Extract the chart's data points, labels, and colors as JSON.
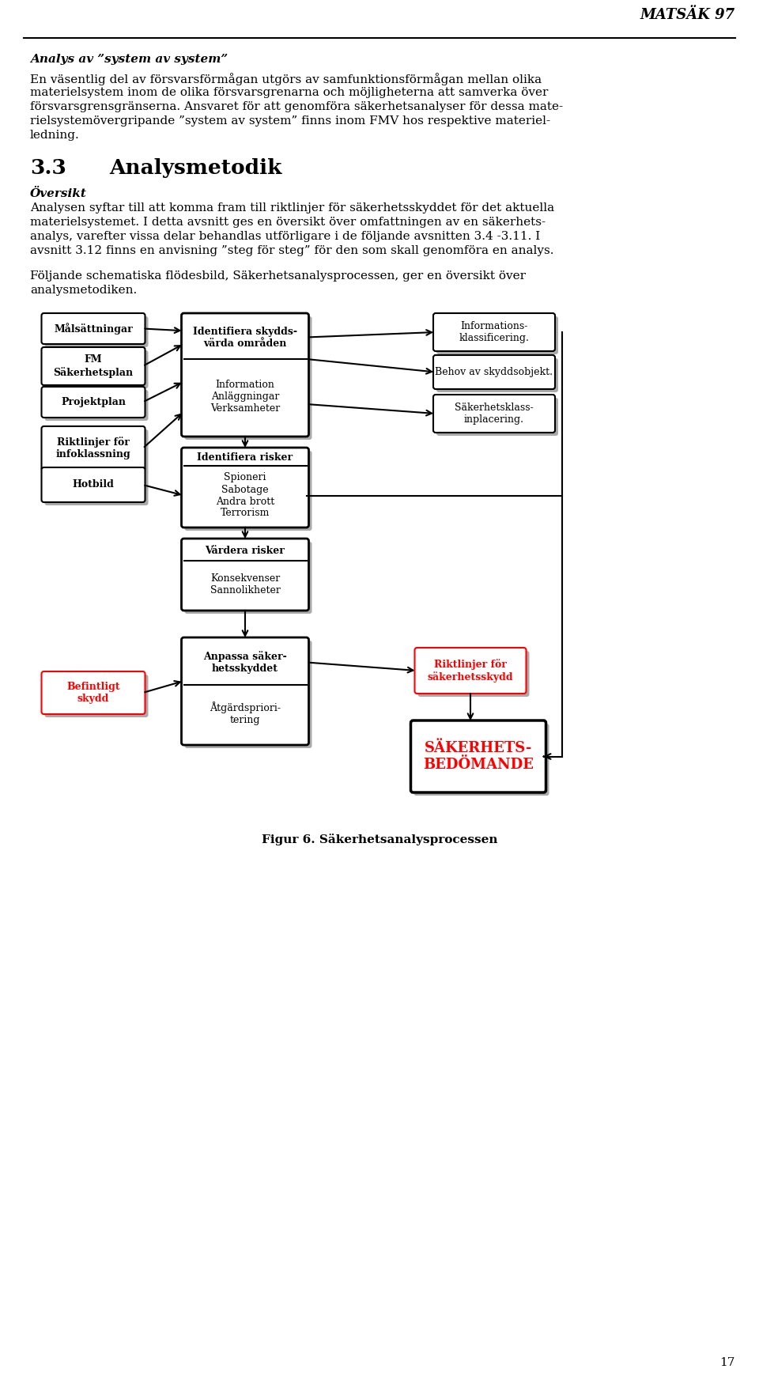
{
  "background_color": "#ffffff",
  "header_text": "MATSÄK 97",
  "section_italic_bold_title": "Analys av ”system av system”",
  "para1_lines": [
    "En väsentlig del av försvarsförmågan utgörs av samfunktionsförmågan mellan olika",
    "materielsystem inom de olika försvarsgrenarna och möjligheterna att samverka över",
    "försvarsgrensgränserna. Ansvaret för att genomföra säkerhetsanalyser för dessa mate-",
    "rielsystemövergripande ”system av system” finns inom FMV hos respektive materiel-",
    "ledning."
  ],
  "section_number": "3.3",
  "section_title": "Analysmetodik",
  "subsection_italic_bold": "Översikt",
  "para2_lines": [
    "Analysen syftar till att komma fram till riktlinjer för säkerhetsskyddet för det aktuella",
    "materielsystemet. I detta avsnitt ges en översikt över omfattningen av en säkerhets-",
    "analys, varefter vissa delar behandlas utförligare i de följande avsnitten 3.4 -3.11. I",
    "avsnitt 3.12 finns en anvisning ”steg för steg” för den som skall genomföra en analys."
  ],
  "para3_lines": [
    "Följande schematiska flödesbild, Säkerhetsanalysprocessen, ger en översikt över",
    "analysmetodiken."
  ],
  "fig_caption": "Figur 6. Säkerhetsanalysprocessen",
  "page_number": "17"
}
